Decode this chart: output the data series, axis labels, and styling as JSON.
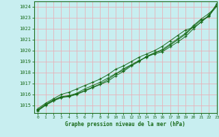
{
  "title": "Graphe pression niveau de la mer (hPa)",
  "xlim": [
    -0.5,
    23
  ],
  "ylim": [
    1014.3,
    1024.5
  ],
  "yticks": [
    1015,
    1016,
    1017,
    1018,
    1019,
    1020,
    1021,
    1022,
    1023,
    1024
  ],
  "xticks": [
    0,
    1,
    2,
    3,
    4,
    5,
    6,
    7,
    8,
    9,
    10,
    11,
    12,
    13,
    14,
    15,
    16,
    17,
    18,
    19,
    20,
    21,
    22,
    23
  ],
  "bg_color": "#c8eef0",
  "grid_color": "#e8b0b8",
  "line_color": "#1a6b1a",
  "lines": [
    [
      1014.6,
      1015.1,
      1015.5,
      1015.8,
      1015.9,
      1016.1,
      1016.5,
      1016.8,
      1017.1,
      1017.5,
      1017.9,
      1018.2,
      1018.7,
      1019.1,
      1019.4,
      1019.8,
      1020.0,
      1020.5,
      1021.0,
      1021.5,
      1022.2,
      1022.8,
      1023.1,
      1024.3
    ],
    [
      1014.7,
      1015.2,
      1015.6,
      1016.0,
      1016.2,
      1016.5,
      1016.8,
      1017.1,
      1017.4,
      1017.8,
      1018.3,
      1018.6,
      1019.0,
      1019.4,
      1019.7,
      1020.0,
      1020.4,
      1020.9,
      1021.4,
      1021.9,
      1022.1,
      1022.6,
      1023.2,
      1024.05
    ],
    [
      1014.5,
      1015.0,
      1015.4,
      1015.7,
      1015.8,
      1016.0,
      1016.3,
      1016.6,
      1016.9,
      1017.2,
      1017.7,
      1018.1,
      1018.6,
      1019.0,
      1019.5,
      1019.8,
      1020.1,
      1020.6,
      1021.1,
      1021.6,
      1022.3,
      1022.9,
      1023.4,
      1024.1
    ],
    [
      1014.55,
      1015.05,
      1015.45,
      1015.75,
      1015.85,
      1016.05,
      1016.35,
      1016.65,
      1016.95,
      1017.35,
      1017.85,
      1018.35,
      1018.7,
      1019.05,
      1019.45,
      1019.7,
      1019.9,
      1020.35,
      1020.8,
      1021.3,
      1022.0,
      1022.65,
      1023.25,
      1024.25
    ]
  ]
}
